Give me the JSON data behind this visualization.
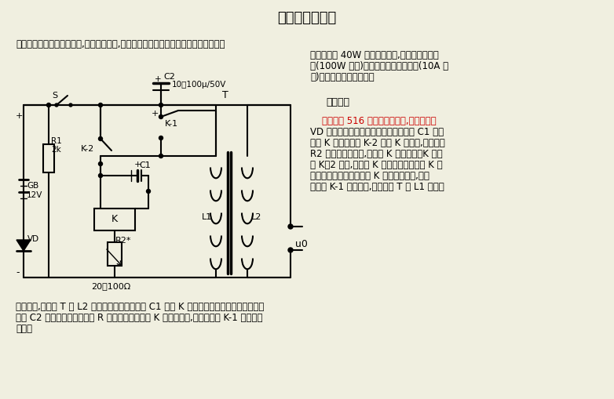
{
  "title": "继电器逆变装置",
  "background_color": "#f0efe0",
  "text_color": "#000000",
  "red_text_color": "#cc0000",
  "para1": "本电路为一继电器逆变装置,电路简单易制,很适合初学者制作。该电路配用不同的变压",
  "para2_indent": "器可以点亮 40W 以下的日光灯,配用大功率变压",
  "para3_indent": "器(100W 以上)和触点容量大的继电器(10A 以",
  "para4_indent": "上)可以制成电子打鱼器。",
  "section_title": "工作原理",
  "desc_indent": "    电路如图 516 所示。接通电源,发光二极管",
  "desc2": "VD 指示工作。电流从电源正极通过电容 C1 和继",
  "desc3": "电器 K 的常闭接点 K-2 流过 K 的线圈,通过电阻",
  "desc4": "R2 流回电源的负极,继电器 K 得电吸合。K 吸合",
  "desc5": "后 K－2 打开,继电器 K 又断电释放。然后 K 又",
  "desc6": "重新吸合和释放。继电器 K 如此反复通断,其常",
  "desc7": "开接点 K-1 反复通断,在变压器 T 的 L1 中产生",
  "bottom1": "脉动电流,从而在 T 的 L2 感应出交流高压。电容 C1 为使 K 的常开接点能可靠接通而设的。",
  "bottom2": "电容 C2 为消火花电路。电阻 R 是用来调节继电器 K 的吸合深度,从而使接点 K-1 能可靠地",
  "bottom3": "接通。",
  "c2_label": "C2",
  "c2_spec": "10～100μ/50V",
  "k1_label": "K-1",
  "k2_label": "K-2",
  "c1_label": "C1",
  "r1_label": "R1",
  "r1_val": "2k",
  "gb_label": "GB",
  "gb_val": "12V",
  "vd_label": "VD",
  "k_label": "K",
  "r2_label": "R2*",
  "r2_spec": "20～100Ω",
  "t_label": "T",
  "l1_label": "L1",
  "l2_label": "L2",
  "s_label": "S",
  "u0_label": "u0",
  "plus_sign": "+",
  "minus_sign": "-"
}
